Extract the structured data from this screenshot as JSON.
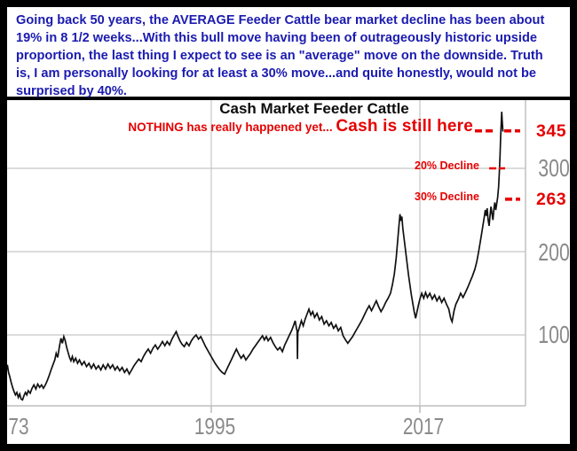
{
  "note_box": {
    "text_color": "#1b1bb0",
    "lines": [
      "Going back 50 years, the AVERAGE Feeder Cattle bear market decline has been about",
      "19% in 8 1/2 weeks...With this bull move having been of outrageously historic upside",
      "proportion, the last thing I expect to see is an \"average\" move on the downside. Truth",
      "is, I am personally looking for at least a 30% move...and quite honestly, would not be",
      "surprised by 40%."
    ]
  },
  "chart_data": {
    "type": "line",
    "title": "Cash Market Feeder Cattle",
    "xlabel": "",
    "ylabel": "",
    "x_domain": [
      1973.4,
      2028.1
    ],
    "y_domain": [
      15,
      390
    ],
    "grid": true,
    "x_tick_labels": [
      "73",
      "1995",
      "2017"
    ],
    "x_tick_years": [
      1973,
      1995,
      2017
    ],
    "y_tick_values": [
      100,
      200,
      300
    ],
    "axis_label_color": "#8a8a8a",
    "grid_color": "#c6c6c6",
    "line_color": "#111111",
    "annotations": {
      "annotation_color": "#e60000",
      "nothing_text": "NOTHING has really happened yet...  ",
      "cash_label": "Cash is still here",
      "cash_value": "345",
      "cash_level": 345,
      "decline20_label": "20% Decline",
      "decline20_level": 300,
      "decline30_label": "30% Decline",
      "decline30_value": "263",
      "decline30_level": 263
    },
    "series": [
      {
        "name": "Cash Market Feeder Cattle",
        "points": [
          [
            1973.4,
            58
          ],
          [
            1973.5,
            64
          ],
          [
            1973.62,
            55
          ],
          [
            1973.75,
            50
          ],
          [
            1973.9,
            43
          ],
          [
            1974.05,
            37
          ],
          [
            1974.2,
            32
          ],
          [
            1974.35,
            28
          ],
          [
            1974.5,
            31
          ],
          [
            1974.65,
            25
          ],
          [
            1974.8,
            29
          ],
          [
            1974.95,
            23
          ],
          [
            1975.1,
            22
          ],
          [
            1975.25,
            27
          ],
          [
            1975.4,
            31
          ],
          [
            1975.55,
            28
          ],
          [
            1975.7,
            33
          ],
          [
            1975.9,
            30
          ],
          [
            1976.1,
            36
          ],
          [
            1976.3,
            40
          ],
          [
            1976.5,
            35
          ],
          [
            1976.7,
            41
          ],
          [
            1976.9,
            37
          ],
          [
            1977.1,
            40
          ],
          [
            1977.3,
            36
          ],
          [
            1977.5,
            40
          ],
          [
            1977.7,
            45
          ],
          [
            1977.9,
            51
          ],
          [
            1978.1,
            58
          ],
          [
            1978.3,
            64
          ],
          [
            1978.5,
            70
          ],
          [
            1978.65,
            78
          ],
          [
            1978.8,
            73
          ],
          [
            1979.0,
            87
          ],
          [
            1979.15,
            96
          ],
          [
            1979.3,
            90
          ],
          [
            1979.45,
            98
          ],
          [
            1979.6,
            93
          ],
          [
            1979.75,
            85
          ],
          [
            1979.9,
            79
          ],
          [
            1980.05,
            73
          ],
          [
            1980.2,
            69
          ],
          [
            1980.35,
            74
          ],
          [
            1980.5,
            68
          ],
          [
            1980.7,
            72
          ],
          [
            1980.9,
            66
          ],
          [
            1981.1,
            70
          ],
          [
            1981.35,
            64
          ],
          [
            1981.6,
            68
          ],
          [
            1981.85,
            62
          ],
          [
            1982.1,
            66
          ],
          [
            1982.35,
            60
          ],
          [
            1982.6,
            65
          ],
          [
            1982.85,
            59
          ],
          [
            1983.1,
            63
          ],
          [
            1983.35,
            58
          ],
          [
            1983.6,
            64
          ],
          [
            1983.85,
            59
          ],
          [
            1984.1,
            65
          ],
          [
            1984.35,
            60
          ],
          [
            1984.6,
            64
          ],
          [
            1984.85,
            58
          ],
          [
            1985.1,
            62
          ],
          [
            1985.35,
            57
          ],
          [
            1985.6,
            61
          ],
          [
            1985.85,
            55
          ],
          [
            1986.1,
            59
          ],
          [
            1986.35,
            53
          ],
          [
            1986.6,
            58
          ],
          [
            1986.85,
            63
          ],
          [
            1987.1,
            67
          ],
          [
            1987.35,
            71
          ],
          [
            1987.6,
            68
          ],
          [
            1987.85,
            74
          ],
          [
            1988.1,
            79
          ],
          [
            1988.35,
            83
          ],
          [
            1988.6,
            78
          ],
          [
            1988.85,
            84
          ],
          [
            1989.1,
            88
          ],
          [
            1989.35,
            83
          ],
          [
            1989.6,
            87
          ],
          [
            1989.85,
            92
          ],
          [
            1990.1,
            87
          ],
          [
            1990.35,
            92
          ],
          [
            1990.6,
            88
          ],
          [
            1990.85,
            95
          ],
          [
            1991.1,
            100
          ],
          [
            1991.3,
            104
          ],
          [
            1991.5,
            98
          ],
          [
            1991.7,
            93
          ],
          [
            1991.9,
            89
          ],
          [
            1992.15,
            86
          ],
          [
            1992.4,
            91
          ],
          [
            1992.65,
            87
          ],
          [
            1992.9,
            93
          ],
          [
            1993.15,
            97
          ],
          [
            1993.4,
            100
          ],
          [
            1993.65,
            95
          ],
          [
            1993.9,
            98
          ],
          [
            1994.15,
            92
          ],
          [
            1994.4,
            86
          ],
          [
            1994.65,
            81
          ],
          [
            1994.9,
            76
          ],
          [
            1995.15,
            71
          ],
          [
            1995.4,
            66
          ],
          [
            1995.65,
            62
          ],
          [
            1995.9,
            58
          ],
          [
            1996.15,
            55
          ],
          [
            1996.4,
            53
          ],
          [
            1996.65,
            59
          ],
          [
            1996.9,
            65
          ],
          [
            1997.15,
            71
          ],
          [
            1997.4,
            77
          ],
          [
            1997.65,
            83
          ],
          [
            1997.9,
            77
          ],
          [
            1998.15,
            72
          ],
          [
            1998.4,
            76
          ],
          [
            1998.65,
            70
          ],
          [
            1998.9,
            74
          ],
          [
            1999.15,
            78
          ],
          [
            1999.4,
            83
          ],
          [
            1999.65,
            87
          ],
          [
            1999.9,
            91
          ],
          [
            2000.15,
            95
          ],
          [
            2000.4,
            99
          ],
          [
            2000.6,
            94
          ],
          [
            2000.8,
            98
          ],
          [
            2001.0,
            93
          ],
          [
            2001.25,
            97
          ],
          [
            2001.5,
            91
          ],
          [
            2001.75,
            86
          ],
          [
            2002.0,
            82
          ],
          [
            2002.25,
            85
          ],
          [
            2002.5,
            80
          ],
          [
            2002.75,
            88
          ],
          [
            2003.0,
            94
          ],
          [
            2003.25,
            100
          ],
          [
            2003.5,
            106
          ],
          [
            2003.7,
            112
          ],
          [
            2003.85,
            117
          ],
          [
            2004.0,
            107
          ],
          [
            2004.05,
            105
          ],
          [
            2004.09,
            71
          ],
          [
            2004.13,
            103
          ],
          [
            2004.3,
            109
          ],
          [
            2004.5,
            117
          ],
          [
            2004.7,
            111
          ],
          [
            2004.9,
            119
          ],
          [
            2005.1,
            125
          ],
          [
            2005.3,
            131
          ],
          [
            2005.5,
            124
          ],
          [
            2005.7,
            128
          ],
          [
            2005.9,
            121
          ],
          [
            2006.15,
            126
          ],
          [
            2006.4,
            118
          ],
          [
            2006.65,
            122
          ],
          [
            2006.9,
            113
          ],
          [
            2007.15,
            117
          ],
          [
            2007.4,
            111
          ],
          [
            2007.65,
            115
          ],
          [
            2007.9,
            108
          ],
          [
            2008.15,
            112
          ],
          [
            2008.4,
            105
          ],
          [
            2008.65,
            109
          ],
          [
            2008.9,
            99
          ],
          [
            2009.15,
            94
          ],
          [
            2009.4,
            90
          ],
          [
            2009.65,
            94
          ],
          [
            2009.9,
            98
          ],
          [
            2010.15,
            103
          ],
          [
            2010.4,
            108
          ],
          [
            2010.65,
            113
          ],
          [
            2010.9,
            118
          ],
          [
            2011.15,
            124
          ],
          [
            2011.4,
            130
          ],
          [
            2011.65,
            135
          ],
          [
            2011.9,
            129
          ],
          [
            2012.15,
            135
          ],
          [
            2012.4,
            141
          ],
          [
            2012.65,
            134
          ],
          [
            2012.9,
            128
          ],
          [
            2013.15,
            133
          ],
          [
            2013.4,
            139
          ],
          [
            2013.65,
            144
          ],
          [
            2013.9,
            150
          ],
          [
            2014.1,
            160
          ],
          [
            2014.3,
            173
          ],
          [
            2014.5,
            192
          ],
          [
            2014.65,
            212
          ],
          [
            2014.8,
            232
          ],
          [
            2014.9,
            245
          ],
          [
            2015.0,
            237
          ],
          [
            2015.1,
            242
          ],
          [
            2015.2,
            228
          ],
          [
            2015.35,
            214
          ],
          [
            2015.5,
            200
          ],
          [
            2015.65,
            186
          ],
          [
            2015.8,
            172
          ],
          [
            2015.95,
            160
          ],
          [
            2016.1,
            148
          ],
          [
            2016.25,
            138
          ],
          [
            2016.4,
            128
          ],
          [
            2016.55,
            120
          ],
          [
            2016.7,
            128
          ],
          [
            2016.85,
            136
          ],
          [
            2017.0,
            143
          ],
          [
            2017.2,
            150
          ],
          [
            2017.4,
            144
          ],
          [
            2017.6,
            151
          ],
          [
            2017.8,
            145
          ],
          [
            2018.05,
            150
          ],
          [
            2018.3,
            143
          ],
          [
            2018.55,
            148
          ],
          [
            2018.8,
            141
          ],
          [
            2019.05,
            146
          ],
          [
            2019.3,
            139
          ],
          [
            2019.55,
            144
          ],
          [
            2019.8,
            137
          ],
          [
            2020.05,
            131
          ],
          [
            2020.25,
            120
          ],
          [
            2020.4,
            116
          ],
          [
            2020.6,
            129
          ],
          [
            2020.8,
            137
          ],
          [
            2021.05,
            143
          ],
          [
            2021.3,
            150
          ],
          [
            2021.55,
            145
          ],
          [
            2021.8,
            151
          ],
          [
            2022.05,
            157
          ],
          [
            2022.3,
            164
          ],
          [
            2022.55,
            171
          ],
          [
            2022.8,
            179
          ],
          [
            2023.0,
            188
          ],
          [
            2023.2,
            200
          ],
          [
            2023.4,
            214
          ],
          [
            2023.6,
            228
          ],
          [
            2023.8,
            242
          ],
          [
            2023.9,
            250
          ],
          [
            2024.0,
            243
          ],
          [
            2024.1,
            252
          ],
          [
            2024.2,
            238
          ],
          [
            2024.3,
            231
          ],
          [
            2024.4,
            244
          ],
          [
            2024.5,
            254
          ],
          [
            2024.6,
            246
          ],
          [
            2024.7,
            238
          ],
          [
            2024.8,
            250
          ],
          [
            2024.9,
            259
          ],
          [
            2025.0,
            250
          ],
          [
            2025.1,
            257
          ],
          [
            2025.2,
            265
          ],
          [
            2025.3,
            278
          ],
          [
            2025.38,
            295
          ],
          [
            2025.45,
            315
          ],
          [
            2025.52,
            338
          ],
          [
            2025.58,
            355
          ],
          [
            2025.63,
            368
          ],
          [
            2025.68,
            358
          ],
          [
            2025.72,
            350
          ],
          [
            2025.76,
            344
          ]
        ]
      }
    ]
  }
}
